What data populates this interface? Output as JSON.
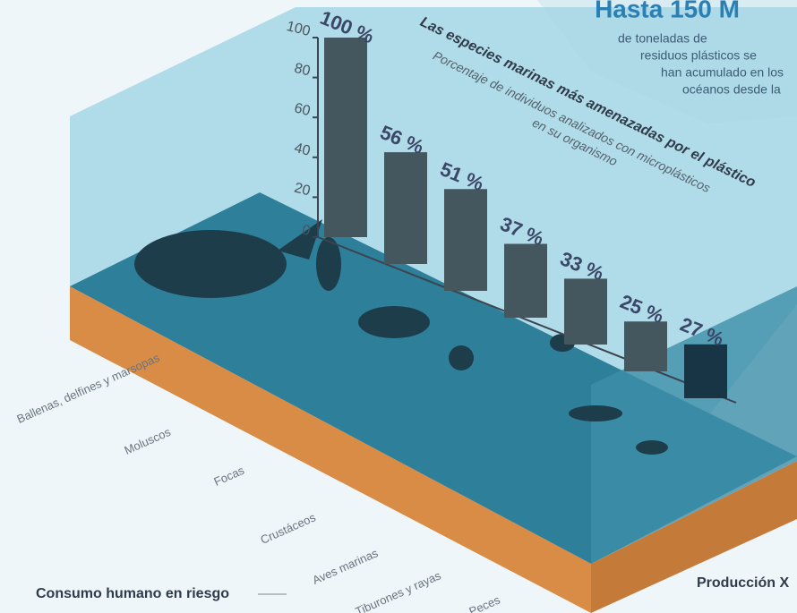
{
  "header": {
    "title": "Hasta 150 M",
    "lines": [
      "de toneladas de",
      "residuos plásticos se",
      "han acumulado en los",
      "océanos desde la"
    ]
  },
  "footer": {
    "note": "Consumo humano en riesgo",
    "label": "Producción X"
  },
  "chart_data": {
    "type": "bar",
    "title": "Las especies marinas más amenazadas por el plástico",
    "subtitle": [
      "Porcentaje de individuos analizados con microplásticos",
      "en su organismo"
    ],
    "categories": [
      "Ballenas, delfines y marsopas",
      "Moluscos",
      "Focas",
      "Crustáceos",
      "Aves marinas",
      "Tiburones y rayas",
      "Peces"
    ],
    "values": [
      100,
      56,
      51,
      37,
      33,
      25,
      27
    ],
    "value_labels": [
      "100 %",
      "56 %",
      "51 %",
      "37 %",
      "33 %",
      "25 %",
      "27 %"
    ],
    "colors": [
      "#44575f",
      "#44575f",
      "#44575f",
      "#44575f",
      "#44575f",
      "#44575f",
      "#173544"
    ],
    "ylim": [
      0,
      100
    ],
    "yticks": [
      0,
      20,
      40,
      60,
      80,
      100
    ]
  }
}
